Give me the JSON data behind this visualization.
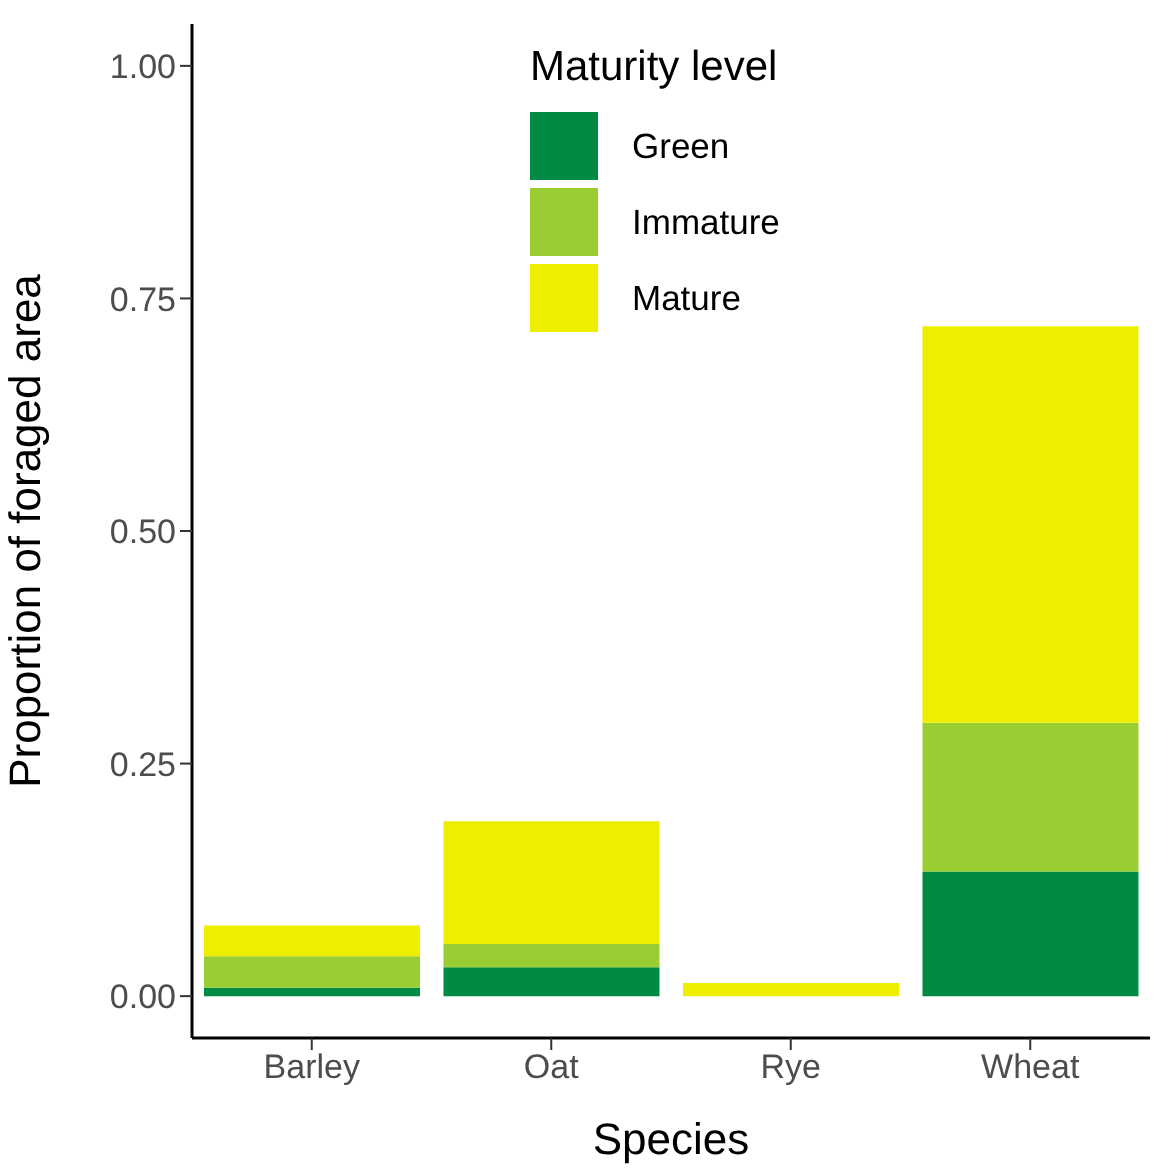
{
  "chart_data": {
    "type": "bar",
    "stacked": true,
    "xlabel": "Species",
    "ylabel": "Proportion of foraged area",
    "legend_title": "Maturity level",
    "legend": "top",
    "grid": false,
    "categories": [
      "Barley",
      "Oat",
      "Rye",
      "Wheat"
    ],
    "series": [
      {
        "name": "Green",
        "color": "#008b45",
        "values": [
          0.009,
          0.031,
          0,
          0.134
        ]
      },
      {
        "name": "Immature",
        "color": "#9acd32",
        "values": [
          0.034,
          0.025,
          0,
          0.16
        ]
      },
      {
        "name": "Mature",
        "color": "#eeee00",
        "values": [
          0.033,
          0.132,
          0.014,
          0.426
        ]
      }
    ],
    "ylim": [
      -0.045,
      1.045
    ],
    "yticks": [
      {
        "value": 0,
        "label": "0.00"
      },
      {
        "value": 0.25,
        "label": "0.25"
      },
      {
        "value": 0.5,
        "label": "0.50"
      },
      {
        "value": 0.75,
        "label": "0.75"
      },
      {
        "value": 1,
        "label": "1.00"
      }
    ]
  }
}
